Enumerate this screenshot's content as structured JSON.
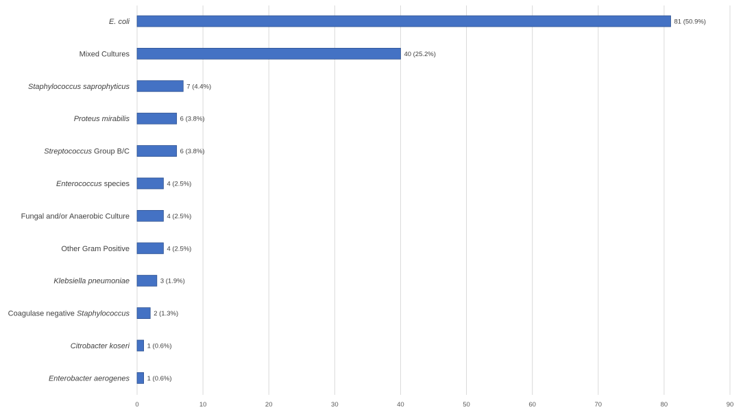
{
  "chart_data": {
    "type": "bar",
    "orientation": "horizontal",
    "categories": [
      {
        "parts": [
          {
            "text": "E. coli",
            "italic": true
          }
        ]
      },
      {
        "parts": [
          {
            "text": "Mixed Cultures",
            "italic": false
          }
        ]
      },
      {
        "parts": [
          {
            "text": "Staphylococcus saprophyticus",
            "italic": true
          }
        ]
      },
      {
        "parts": [
          {
            "text": "Proteus mirabilis",
            "italic": true
          }
        ]
      },
      {
        "parts": [
          {
            "text": "Streptococcus",
            "italic": true
          },
          {
            "text": " Group B/C",
            "italic": false
          }
        ]
      },
      {
        "parts": [
          {
            "text": "Enterococcus",
            "italic": true
          },
          {
            "text": " species",
            "italic": false
          }
        ]
      },
      {
        "parts": [
          {
            "text": "Fungal and/or Anaerobic Culture",
            "italic": false
          }
        ]
      },
      {
        "parts": [
          {
            "text": "Other Gram Positive",
            "italic": false
          }
        ]
      },
      {
        "parts": [
          {
            "text": "Klebsiella pneumoniae",
            "italic": true
          }
        ]
      },
      {
        "parts": [
          {
            "text": "Coagulase negative ",
            "italic": false
          },
          {
            "text": "Staphylococcus",
            "italic": true
          }
        ]
      },
      {
        "parts": [
          {
            "text": "Citrobacter koseri",
            "italic": true
          }
        ]
      },
      {
        "parts": [
          {
            "text": "Enterobacter aerogenes",
            "italic": true
          }
        ]
      }
    ],
    "values": [
      81,
      40,
      7,
      6,
      6,
      4,
      4,
      4,
      3,
      2,
      1,
      1
    ],
    "data_labels": [
      "81 (50.9%)",
      "40 (25.2%)",
      "7 (4.4%)",
      "6 (3.8%)",
      "6 (3.8%)",
      "4 (2.5%)",
      "4 (2.5%)",
      "4 (2.5%)",
      "3 (1.9%)",
      "2 (1.3%)",
      "1 (0.6%)",
      "1 (0.6%)"
    ],
    "xlim": [
      0,
      90
    ],
    "xticks": [
      "0",
      "10",
      "20",
      "30",
      "40",
      "50",
      "60",
      "70",
      "80",
      "90"
    ],
    "grid": true,
    "bar_color": "#4472c4",
    "bar_edge_color": "#2f528f",
    "grid_color": "#d9d9d9",
    "title": "",
    "xlabel": "",
    "ylabel": ""
  }
}
